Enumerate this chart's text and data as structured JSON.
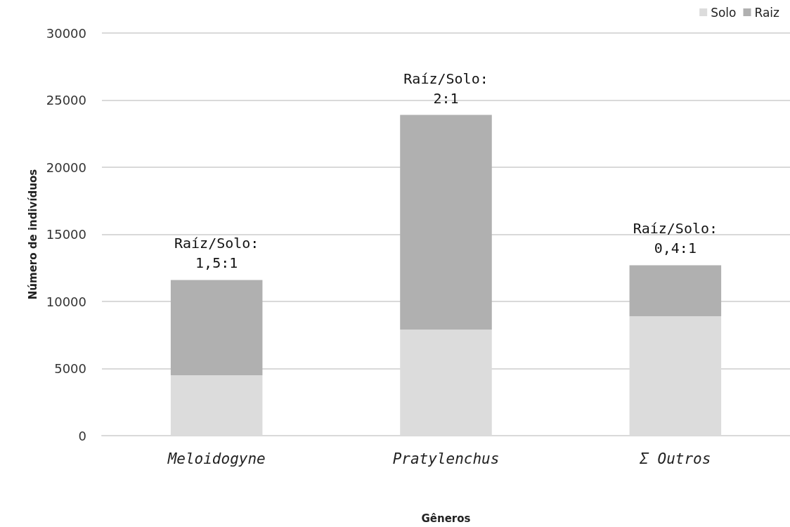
{
  "chart_data": {
    "type": "bar",
    "stacked": true,
    "xlabel": "Gêneros",
    "ylabel": "Número de indivíduos",
    "categories": [
      "Meloidogyne",
      "Pratylenchus",
      "Σ Outros"
    ],
    "series": [
      {
        "name": "Solo",
        "color": "#dcdcdc",
        "values": [
          4500,
          7900,
          8900
        ]
      },
      {
        "name": "Raiz",
        "color": "#b0b0b0",
        "values": [
          7100,
          16000,
          3800
        ]
      }
    ],
    "ylim": [
      0,
      30000
    ],
    "yticks": [
      0,
      5000,
      10000,
      15000,
      20000,
      25000,
      30000
    ],
    "grid": "y",
    "legend": "top right",
    "annotations": [
      {
        "text": "Raíz/Solo:\n1,5:1",
        "x": "Meloidogyne",
        "y": 11600
      },
      {
        "text": "Raíz/Solo:\n2:1",
        "x": "Pratylenchus",
        "y": 23900
      },
      {
        "text": "Raíz/Solo:\n0,4:1",
        "x": "Σ Outros",
        "y": 12700
      }
    ]
  }
}
